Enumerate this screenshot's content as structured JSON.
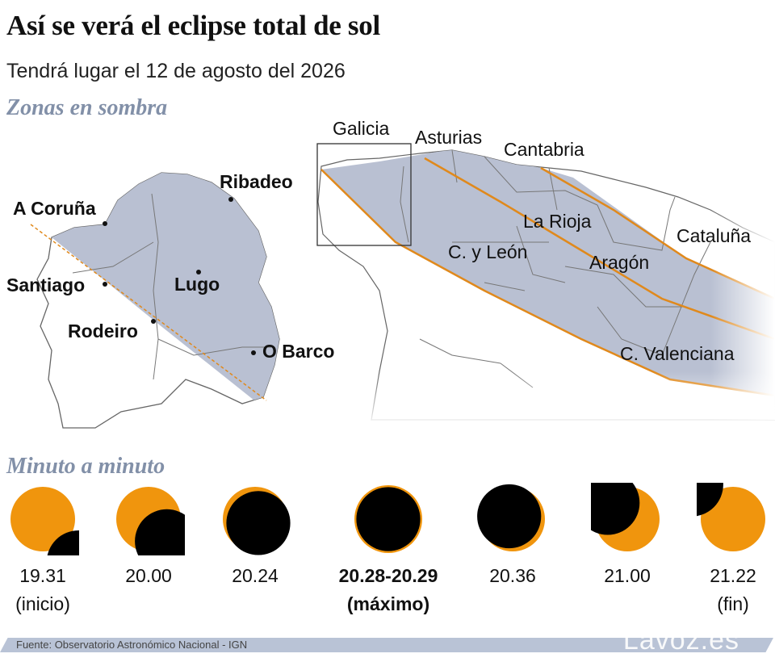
{
  "header": {
    "title": "Así se verá el eclipse total de sol",
    "subtitle": "Tendrá lugar el 12 de agosto del 2026"
  },
  "map_section": {
    "heading": "Zonas en sombra",
    "galicia_places": [
      "A Coruña",
      "Ribadeo",
      "Santiago",
      "Lugo",
      "Rodeiro",
      "O Barco"
    ],
    "regions": {
      "galicia": "Galicia",
      "asturias": "Asturias",
      "cantabria": "Cantabria",
      "la_rioja": "La Rioja",
      "cataluna": "Cataluña",
      "cyleon": "C. y León",
      "aragon": "Aragón",
      "valenciana": "C. Valenciana"
    },
    "colors": {
      "shadow": "#b9c0d2",
      "band_edge": "#e0891c",
      "border": "#777777"
    }
  },
  "timeline": {
    "heading": "Minuto a minuto",
    "phases": [
      {
        "time": "19.31",
        "note": "(inicio)",
        "coverage": 0.12
      },
      {
        "time": "20.00",
        "note": "",
        "coverage": 0.55
      },
      {
        "time": "20.24",
        "note": "",
        "coverage": 0.92
      },
      {
        "time": "20.28-20.29",
        "note": "(máximo)",
        "coverage": 1.0
      },
      {
        "time": "20.36",
        "note": "",
        "coverage": 0.93
      },
      {
        "time": "21.00",
        "note": "",
        "coverage": 0.6
      },
      {
        "time": "21.22",
        "note": "(fin)",
        "coverage": 0.15
      }
    ],
    "colors": {
      "sun": "#f0950d",
      "moon": "#000000"
    }
  },
  "footer": {
    "source": "Fuente: Observatorio Astronómico Nacional - IGN",
    "brand": "Lavoz.es"
  }
}
